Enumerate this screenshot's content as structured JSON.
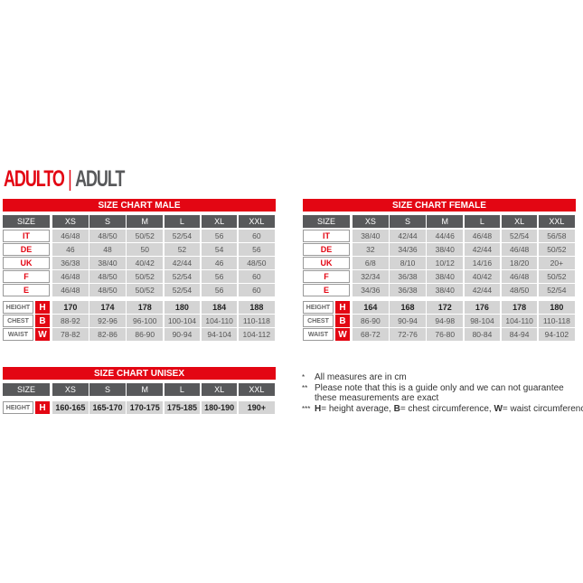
{
  "heading": {
    "red": "ADULTO",
    "sep": "|",
    "gray": "ADULT"
  },
  "sizes": [
    "XS",
    "S",
    "M",
    "L",
    "XL",
    "XXL"
  ],
  "size_label": "SIZE",
  "colors": {
    "accent": "#e30613",
    "header": "#58595b",
    "cell": "#d4d4d4"
  },
  "male": {
    "title": "SIZE CHART MALE",
    "rows": [
      {
        "label": "IT",
        "values": [
          "46/48",
          "48/50",
          "50/52",
          "52/54",
          "56",
          "60"
        ]
      },
      {
        "label": "DE",
        "values": [
          "46",
          "48",
          "50",
          "52",
          "54",
          "56"
        ]
      },
      {
        "label": "UK",
        "values": [
          "36/38",
          "38/40",
          "40/42",
          "42/44",
          "46",
          "48/50"
        ]
      },
      {
        "label": "F",
        "values": [
          "46/48",
          "48/50",
          "50/52",
          "52/54",
          "56",
          "60"
        ]
      },
      {
        "label": "E",
        "values": [
          "46/48",
          "48/50",
          "50/52",
          "52/54",
          "56",
          "60"
        ]
      }
    ],
    "metrics": [
      {
        "label": "HEIGHT",
        "letter": "H",
        "values": [
          "170",
          "174",
          "178",
          "180",
          "184",
          "188"
        ]
      },
      {
        "label": "CHEST",
        "letter": "B",
        "values": [
          "88-92",
          "92-96",
          "96-100",
          "100-104",
          "104-110",
          "110-118"
        ]
      },
      {
        "label": "WAIST",
        "letter": "W",
        "values": [
          "78-82",
          "82-86",
          "86-90",
          "90-94",
          "94-104",
          "104-112"
        ]
      }
    ]
  },
  "female": {
    "title": "SIZE CHART FEMALE",
    "rows": [
      {
        "label": "IT",
        "values": [
          "38/40",
          "42/44",
          "44/46",
          "46/48",
          "52/54",
          "56/58"
        ]
      },
      {
        "label": "DE",
        "values": [
          "32",
          "34/36",
          "38/40",
          "42/44",
          "46/48",
          "50/52"
        ]
      },
      {
        "label": "UK",
        "values": [
          "6/8",
          "8/10",
          "10/12",
          "14/16",
          "18/20",
          "20+"
        ]
      },
      {
        "label": "F",
        "values": [
          "32/34",
          "36/38",
          "38/40",
          "40/42",
          "46/48",
          "50/52"
        ]
      },
      {
        "label": "E",
        "values": [
          "34/36",
          "36/38",
          "38/40",
          "42/44",
          "48/50",
          "52/54"
        ]
      }
    ],
    "metrics": [
      {
        "label": "HEIGHT",
        "letter": "H",
        "values": [
          "164",
          "168",
          "172",
          "176",
          "178",
          "180"
        ]
      },
      {
        "label": "CHEST",
        "letter": "B",
        "values": [
          "86-90",
          "90-94",
          "94-98",
          "98-104",
          "104-110",
          "110-118"
        ]
      },
      {
        "label": "WAIST",
        "letter": "W",
        "values": [
          "68-72",
          "72-76",
          "76-80",
          "80-84",
          "84-94",
          "94-102"
        ]
      }
    ]
  },
  "unisex": {
    "title": "SIZE CHART UNISEX",
    "rows": [],
    "metrics": [
      {
        "label": "HEIGHT",
        "letter": "H",
        "values": [
          "160-165",
          "165-170",
          "170-175",
          "175-185",
          "180-190",
          "190+"
        ]
      }
    ]
  },
  "notes": [
    {
      "star": "*",
      "lines": [
        "All measures are in cm"
      ]
    },
    {
      "star": "**",
      "lines": [
        "Please note that this is a guide only and we can not guarantee",
        "these measurements are exact"
      ]
    },
    {
      "star": "***",
      "parts": [
        {
          "b": "H"
        },
        {
          "t": "= height average, "
        },
        {
          "b": "B"
        },
        {
          "t": "= chest circumference, "
        },
        {
          "b": "W"
        },
        {
          "t": "= waist circumference"
        }
      ]
    }
  ]
}
